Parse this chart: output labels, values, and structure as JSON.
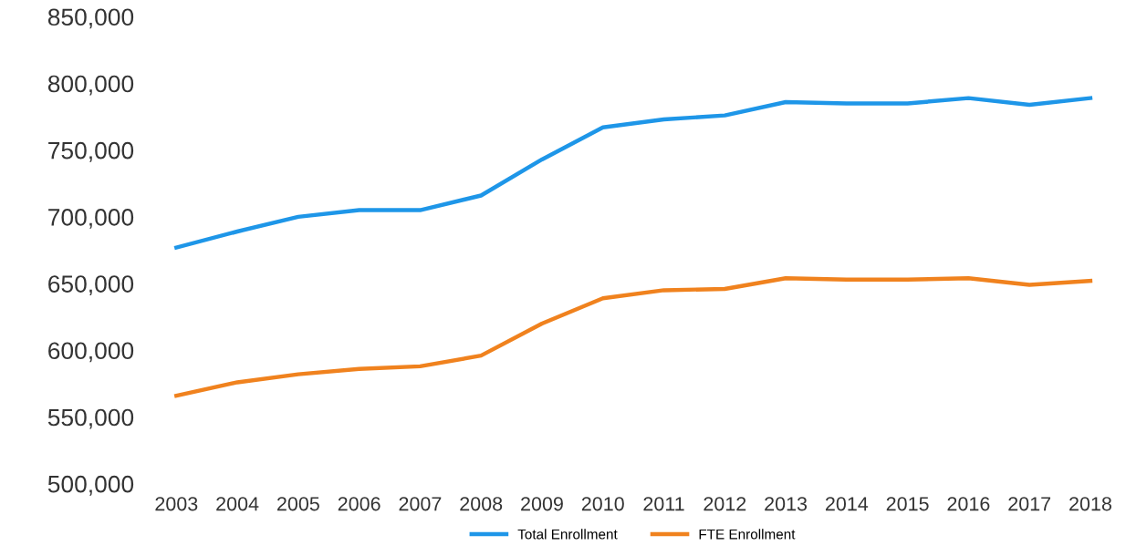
{
  "chart_data": {
    "type": "line",
    "categories": [
      "2003",
      "2004",
      "2005",
      "2006",
      "2007",
      "2008",
      "2009",
      "2010",
      "2011",
      "2012",
      "2013",
      "2014",
      "2015",
      "2016",
      "2017",
      "2018"
    ],
    "series": [
      {
        "name": "Total Enrollment",
        "color": "#1e96e8",
        "values": [
          677000,
          689000,
          700000,
          705000,
          705000,
          716000,
          743000,
          767000,
          773000,
          776000,
          786000,
          785000,
          785000,
          789000,
          784000,
          789000
        ]
      },
      {
        "name": "FTE Enrollment",
        "color": "#f0821e",
        "values": [
          566000,
          576000,
          582000,
          586000,
          588000,
          596000,
          620000,
          639000,
          645000,
          646000,
          654000,
          653000,
          653000,
          654000,
          649000,
          652000
        ]
      }
    ],
    "ylim": [
      500000,
      850000
    ],
    "yticks": [
      {
        "value": 500000,
        "label": "500,000"
      },
      {
        "value": 550000,
        "label": "550,000"
      },
      {
        "value": 600000,
        "label": "600,000"
      },
      {
        "value": 650000,
        "label": "650,000"
      },
      {
        "value": 700000,
        "label": "700,000"
      },
      {
        "value": 750000,
        "label": "750,000"
      },
      {
        "value": 800000,
        "label": "800,000"
      },
      {
        "value": 850000,
        "label": "850,000"
      }
    ],
    "grid": false,
    "legend": "bottom",
    "marker": "none",
    "line_style": "solid"
  }
}
